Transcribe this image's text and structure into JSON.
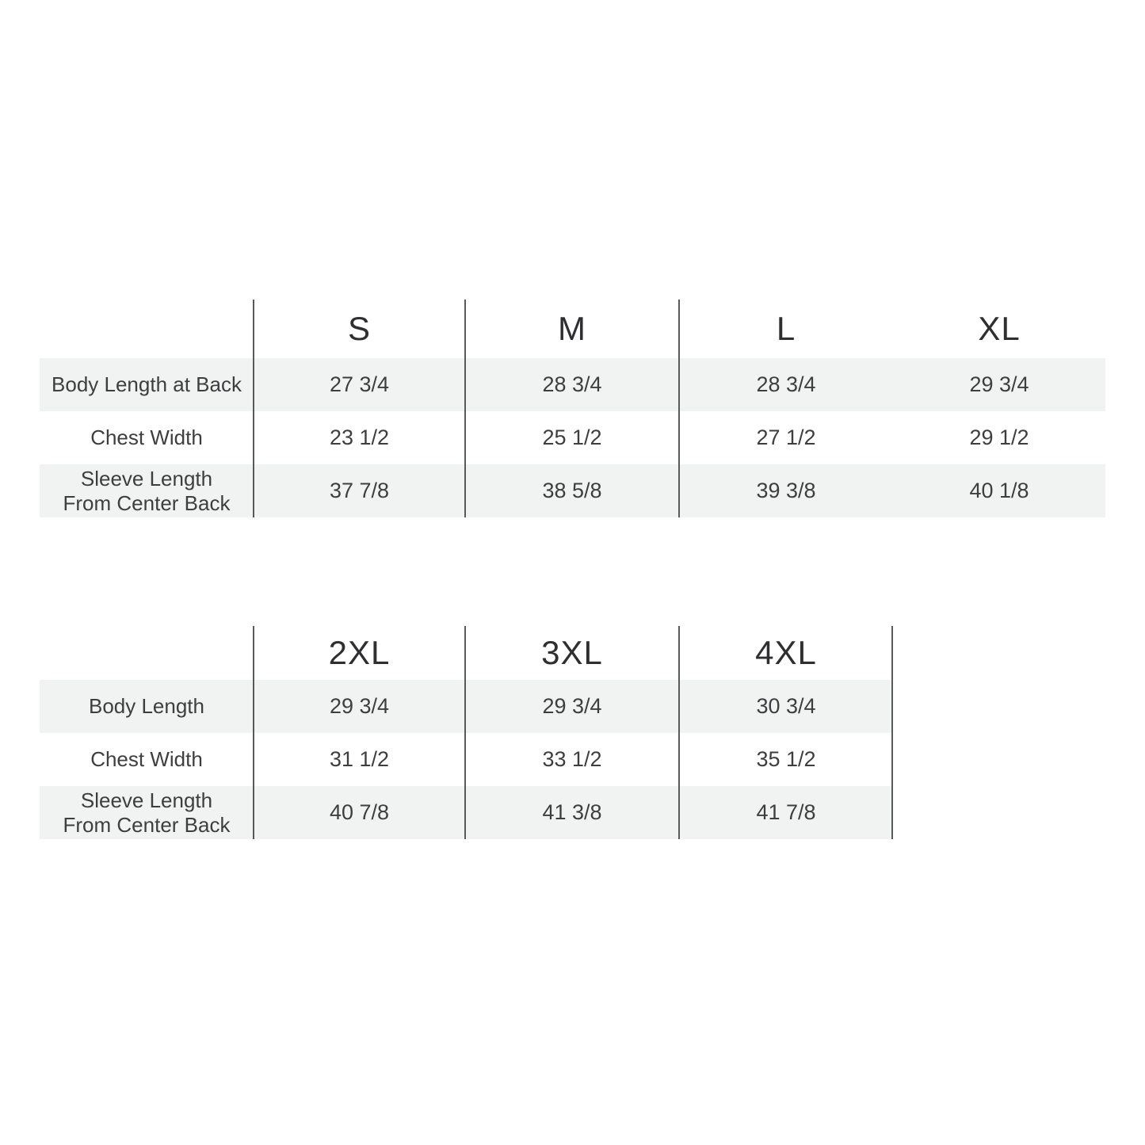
{
  "styles": {
    "background": "#ffffff",
    "row_shade": "#f1f2f2",
    "divider": "#58595b",
    "text": "#3e3e40",
    "header_text": "#2f2f31"
  },
  "chart_data": [
    {
      "type": "table",
      "columns": [
        "",
        "S",
        "M",
        "L",
        "XL"
      ],
      "rows": [
        {
          "label": [
            "Body Length at Back"
          ],
          "values": [
            "27 3/4",
            "28 3/4",
            "28 3/4",
            "29 3/4"
          ]
        },
        {
          "label": [
            "Chest Width"
          ],
          "values": [
            "23 1/2",
            "25 1/2",
            "27 1/2",
            "29 1/2"
          ]
        },
        {
          "label": [
            "Sleeve Length",
            "From Center Back"
          ],
          "values": [
            "37 7/8",
            "38 5/8",
            "39 3/8",
            "40 1/8"
          ]
        }
      ]
    },
    {
      "type": "table",
      "columns": [
        "",
        "2XL",
        "3XL",
        "4XL"
      ],
      "rows": [
        {
          "label": [
            "Body Length"
          ],
          "values": [
            "29 3/4",
            "29 3/4",
            "30 3/4"
          ]
        },
        {
          "label": [
            "Chest Width"
          ],
          "values": [
            "31 1/2",
            "33 1/2",
            "35 1/2"
          ]
        },
        {
          "label": [
            "Sleeve Length",
            "From Center Back"
          ],
          "values": [
            "40 7/8",
            "41 3/8",
            "41 7/8"
          ]
        }
      ]
    }
  ]
}
